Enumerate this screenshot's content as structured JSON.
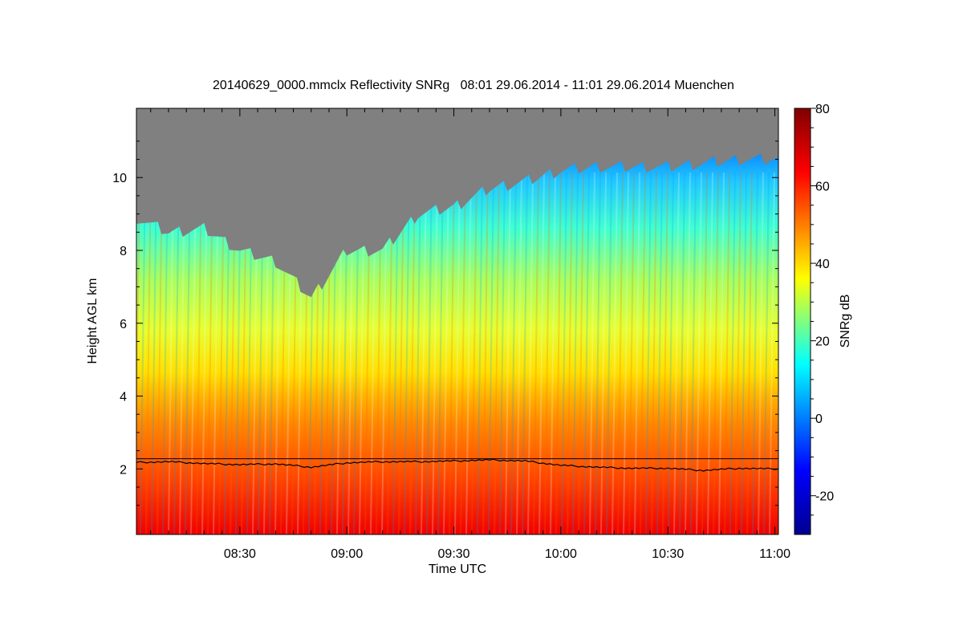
{
  "chart_data": {
    "type": "heatmap",
    "title": "20140629_0000.mmclx Reflectivity SNRg   08:01 29.06.2014 - 11:01 29.06.2014 Muenchen",
    "xlabel": "Time UTC",
    "ylabel": "Height AGL km",
    "x_ticks": [
      "08:30",
      "09:00",
      "09:30",
      "10:00",
      "10:30",
      "11:00"
    ],
    "y_ticks": [
      "2",
      "4",
      "6",
      "8",
      "10"
    ],
    "xlim": [
      "08:01",
      "11:01"
    ],
    "ylim": [
      0.2,
      11.9
    ],
    "colorbar": {
      "label": "SNRg dB",
      "ticks": [
        "-20",
        "0",
        "20",
        "40",
        "60",
        "80"
      ],
      "range": [
        -30,
        80
      ],
      "colors": [
        "#00008f",
        "#0000ff",
        "#00ffff",
        "#ffff00",
        "#ff0000",
        "#800000"
      ]
    },
    "no_signal_color": "#808080",
    "echo_top_km": {
      "times": [
        "08:01",
        "08:10",
        "08:20",
        "08:30",
        "08:40",
        "08:50",
        "09:00",
        "09:10",
        "09:20",
        "09:30",
        "09:40",
        "09:50",
        "10:00",
        "10:10",
        "10:20",
        "10:30",
        "10:40",
        "10:50",
        "11:01"
      ],
      "values": [
        8.9,
        8.5,
        8.6,
        8.0,
        7.7,
        6.7,
        8.0,
        8.0,
        9.0,
        9.2,
        9.7,
        9.9,
        10.2,
        10.3,
        10.3,
        10.3,
        10.4,
        10.5,
        10.5
      ]
    },
    "reference_line_km": 2.28,
    "melting_layer_km": {
      "times": [
        "08:01",
        "08:10",
        "08:20",
        "08:30",
        "08:40",
        "08:50",
        "09:00",
        "09:10",
        "09:20",
        "09:30",
        "09:40",
        "09:50",
        "10:00",
        "10:10",
        "10:20",
        "10:30",
        "10:40",
        "10:50",
        "11:01"
      ],
      "values": [
        2.18,
        2.2,
        2.15,
        2.12,
        2.14,
        2.05,
        2.17,
        2.2,
        2.2,
        2.22,
        2.25,
        2.22,
        2.1,
        2.05,
        2.02,
        2.02,
        1.96,
        2.02,
        2.0
      ]
    }
  }
}
